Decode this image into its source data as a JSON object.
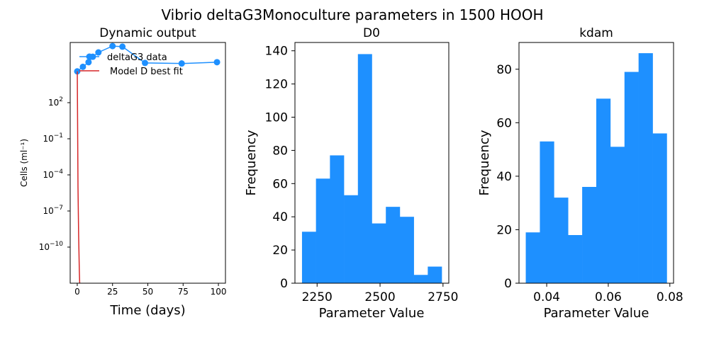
{
  "figure": {
    "title": "Vibrio deltaG3Monoculture parameters in 1500 HOOH"
  },
  "chart_data": [
    {
      "type": "line",
      "title": "Dynamic output",
      "xlabel": "Time (days)",
      "ylabel": "Cells (ml⁻¹)",
      "yscale": "log",
      "xlim": [
        -5,
        105
      ],
      "ylim_exp": [
        -13,
        7
      ],
      "xticks": [
        0,
        25,
        50,
        75,
        100
      ],
      "yticks_exp": [
        2,
        -1,
        -4,
        -7,
        -10
      ],
      "legend": {
        "placement": "upper-left",
        "frameless": true
      },
      "series": [
        {
          "name": "deltaG3 data",
          "color": "#1e90ff",
          "marker": "circle",
          "x": [
            0,
            4,
            8,
            11,
            15,
            25,
            32,
            48,
            74,
            99
          ],
          "y": [
            40000,
            95000,
            230000,
            650000,
            1500000,
            5000000,
            4500000,
            200000,
            180000,
            230000
          ]
        },
        {
          "name": "Model D best fit",
          "color": "#d62728",
          "marker": "none",
          "x": [
            0,
            0.5,
            1,
            1.5,
            2
          ],
          "y": [
            40000,
            1e-05,
            1e-09,
            1e-12,
            1e-14
          ]
        }
      ]
    },
    {
      "type": "bar",
      "subtype": "histogram",
      "title": "D0",
      "xlabel": "Parameter Value",
      "ylabel": "Frequency",
      "color": "#1e90ff",
      "bin_edges": [
        2190,
        2245.5,
        2301,
        2356.5,
        2412,
        2467.5,
        2523,
        2578.5,
        2634,
        2689.5,
        2745
      ],
      "values": [
        31,
        63,
        77,
        53,
        138,
        36,
        46,
        40,
        5,
        10
      ],
      "xlim": [
        2162,
        2773
      ],
      "ylim": [
        0,
        145
      ],
      "xticks": [
        2250,
        2500,
        2750
      ],
      "yticks": [
        0,
        20,
        40,
        60,
        80,
        100,
        120,
        140
      ]
    },
    {
      "type": "bar",
      "subtype": "histogram",
      "title": "kdam",
      "xlabel": "Parameter Value",
      "ylabel": "Frequency",
      "color": "#1e90ff",
      "bin_edges": [
        0.0332,
        0.03778,
        0.04236,
        0.04694,
        0.05152,
        0.0561,
        0.06068,
        0.06526,
        0.06984,
        0.07442,
        0.079
      ],
      "values": [
        19,
        53,
        32,
        18,
        36,
        69,
        51,
        79,
        86,
        56
      ],
      "xlim": [
        0.031,
        0.0812
      ],
      "ylim": [
        0,
        90
      ],
      "xticks": [
        "0.04",
        "0.06",
        "0.08"
      ],
      "yticks": [
        0,
        20,
        40,
        60,
        80
      ]
    }
  ]
}
